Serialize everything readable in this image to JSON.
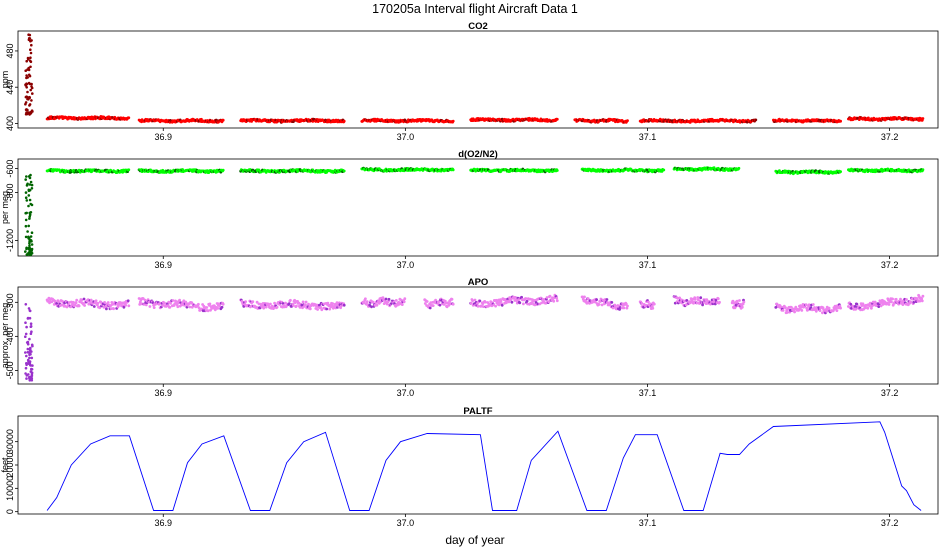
{
  "figure_title": "170205a   Interval flight Aircraft Data 1",
  "xlabel": "day of year",
  "chart_data": [
    {
      "type": "scatter",
      "title": "CO2",
      "ylabel": "ppm",
      "xlim": [
        36.84,
        37.22
      ],
      "ylim": [
        395,
        502
      ],
      "yticks": [
        400,
        440,
        480
      ],
      "xticks": [
        36.9,
        37.0,
        37.1,
        37.2
      ],
      "xtick_labels": [
        "36.9",
        "37.0",
        "37.1",
        "37.2"
      ],
      "colors": {
        "ground": "#8b0000",
        "flight": "#ff0000"
      },
      "ground_segment": {
        "x": [
          36.843,
          36.846
        ],
        "y_range": [
          410,
          500
        ]
      },
      "flight_segments": [
        {
          "x": [
            36.852,
            36.886
          ],
          "y": 406
        },
        {
          "x": [
            36.89,
            36.925
          ],
          "y": 403
        },
        {
          "x": [
            36.932,
            36.975
          ],
          "y": 403
        },
        {
          "x": [
            36.982,
            37.02
          ],
          "y": 403
        },
        {
          "x": [
            37.027,
            37.063
          ],
          "y": 404
        },
        {
          "x": [
            37.07,
            37.092
          ],
          "y": 403
        },
        {
          "x": [
            37.097,
            37.145
          ],
          "y": 403
        },
        {
          "x": [
            37.152,
            37.18
          ],
          "y": 403
        },
        {
          "x": [
            37.183,
            37.214
          ],
          "y": 405
        }
      ]
    },
    {
      "type": "scatter",
      "title": "d(O2/N2)",
      "ylabel": "per meg",
      "xlim": [
        36.84,
        37.22
      ],
      "ylim": [
        -1330,
        -520
      ],
      "yticks": [
        -1200,
        -800,
        -600
      ],
      "xticks": [
        36.9,
        37.0,
        37.1,
        37.2
      ],
      "xtick_labels": [
        "36.9",
        "37.0",
        "37.1",
        "37.2"
      ],
      "colors": {
        "ground": "#006400",
        "flight": "#00ff00"
      },
      "ground_segment": {
        "x": [
          36.843,
          36.846
        ],
        "y_range": [
          -1320,
          -640
        ]
      },
      "flight_segments": [
        {
          "x": [
            36.852,
            36.886
          ],
          "y": -620
        },
        {
          "x": [
            36.89,
            36.925
          ],
          "y": -620
        },
        {
          "x": [
            36.932,
            36.975
          ],
          "y": -620
        },
        {
          "x": [
            36.982,
            37.02
          ],
          "y": -610
        },
        {
          "x": [
            37.027,
            37.063
          ],
          "y": -615
        },
        {
          "x": [
            37.073,
            37.107
          ],
          "y": -615
        },
        {
          "x": [
            37.111,
            37.138
          ],
          "y": -605
        },
        {
          "x": [
            37.153,
            37.18
          ],
          "y": -630
        },
        {
          "x": [
            37.183,
            37.214
          ],
          "y": -615
        }
      ]
    },
    {
      "type": "scatter",
      "title": "APO",
      "ylabel": "approx. per meg",
      "xlim": [
        36.84,
        37.22
      ],
      "ylim": [
        -540,
        -255
      ],
      "yticks": [
        -500,
        -400,
        -300
      ],
      "xticks": [
        36.9,
        37.0,
        37.1,
        37.2
      ],
      "xtick_labels": [
        "36.9",
        "37.0",
        "37.1",
        "37.2"
      ],
      "colors": {
        "ground": "#9932cc",
        "flight": "#ee82ee"
      },
      "ground_segment": {
        "x": [
          36.843,
          36.846
        ],
        "y_range": [
          -530,
          -300
        ]
      },
      "flight_segments": [
        {
          "x": [
            36.852,
            36.886
          ],
          "y0": -300,
          "y1": -308
        },
        {
          "x": [
            36.89,
            36.925
          ],
          "y0": -300,
          "y1": -315
        },
        {
          "x": [
            36.932,
            36.975
          ],
          "y0": -305,
          "y1": -310
        },
        {
          "x": [
            36.982,
            37.0
          ],
          "y0": -300,
          "y1": -300
        },
        {
          "x": [
            37.008,
            37.02
          ],
          "y0": -305,
          "y1": -300
        },
        {
          "x": [
            37.027,
            37.063
          ],
          "y0": -305,
          "y1": -290
        },
        {
          "x": [
            37.073,
            37.092
          ],
          "y0": -290,
          "y1": -315
        },
        {
          "x": [
            37.097,
            37.103
          ],
          "y0": -305,
          "y1": -310
        },
        {
          "x": [
            37.111,
            37.13
          ],
          "y0": -295,
          "y1": -300
        },
        {
          "x": [
            37.135,
            37.14
          ],
          "y0": -305,
          "y1": -305
        },
        {
          "x": [
            37.153,
            37.18
          ],
          "y0": -318,
          "y1": -318
        },
        {
          "x": [
            37.183,
            37.214
          ],
          "y0": -315,
          "y1": -290
        }
      ]
    },
    {
      "type": "line",
      "title": "PALTF",
      "ylabel": "feet",
      "xlim": [
        36.84,
        37.22
      ],
      "ylim": [
        -1000,
        41000
      ],
      "yticks": [
        0,
        10000,
        20000,
        30000
      ],
      "xticks": [
        36.9,
        37.0,
        37.1,
        37.2
      ],
      "xtick_labels": [
        "36.9",
        "37.0",
        "37.1",
        "37.2"
      ],
      "color": "#0000ff",
      "x": [
        36.852,
        36.856,
        36.862,
        36.87,
        36.878,
        36.886,
        36.896,
        36.901,
        36.904,
        36.91,
        36.916,
        36.925,
        36.936,
        36.941,
        36.944,
        36.951,
        36.958,
        36.967,
        36.977,
        36.982,
        36.985,
        36.992,
        36.998,
        37.009,
        37.031,
        37.036,
        37.039,
        37.046,
        37.052,
        37.063,
        37.075,
        37.08,
        37.083,
        37.09,
        37.095,
        37.104,
        37.115,
        37.119,
        37.123,
        37.13,
        37.133,
        37.138,
        37.142,
        37.152,
        37.196,
        37.198,
        37.205,
        37.207,
        37.21,
        37.213
      ],
      "y": [
        500,
        6000,
        20000,
        29000,
        32500,
        32500,
        500,
        500,
        500,
        21000,
        29000,
        32500,
        500,
        500,
        500,
        21000,
        30000,
        34000,
        500,
        500,
        500,
        22000,
        30000,
        33500,
        33000,
        500,
        500,
        500,
        22000,
        34500,
        500,
        500,
        500,
        23000,
        33000,
        33000,
        500,
        500,
        500,
        25000,
        24500,
        24500,
        29000,
        36500,
        38500,
        34000,
        11000,
        9000,
        3000,
        500
      ]
    }
  ]
}
